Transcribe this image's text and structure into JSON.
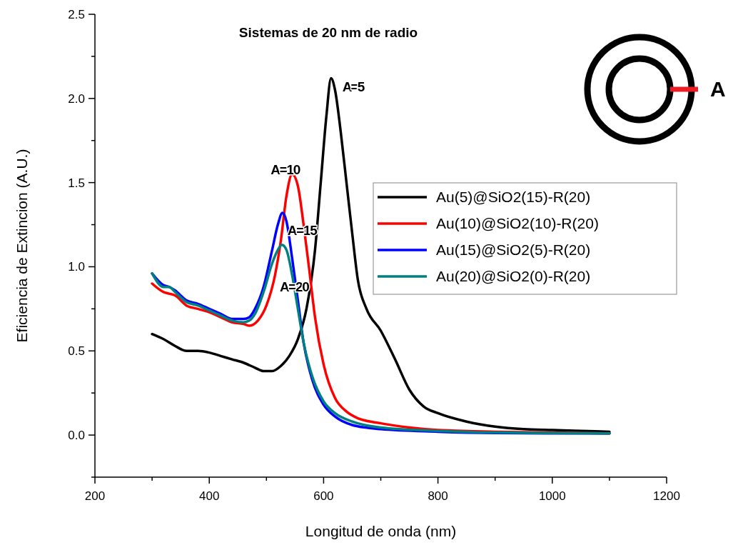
{
  "chart_data": {
    "type": "line",
    "title": "Sistemas de 20 nm de radio",
    "xlabel": "Longitud de onda (nm)",
    "ylabel": "Eficiencia de Extincion (A.U.)",
    "xlim": [
      200,
      1200
    ],
    "ylim": [
      -0.25,
      2.5
    ],
    "xticks": [
      200,
      {
        "value": 300,
        "label": null
      },
      400,
      {
        "value": 500,
        "label": null
      },
      600,
      {
        "value": 700,
        "label": null
      },
      800,
      {
        "value": 900,
        "label": null
      },
      1000,
      {
        "value": 1100,
        "label": null
      },
      1200
    ],
    "yticks": [
      {
        "value": -0.25,
        "label": null
      },
      {
        "value": 0,
        "label": "0.0"
      },
      {
        "value": 0.25,
        "label": null
      },
      0.5,
      {
        "value": 0.75,
        "label": null
      },
      {
        "value": 1,
        "label": "1.0"
      },
      {
        "value": 1.25,
        "label": null
      },
      1.5,
      {
        "value": 1.75,
        "label": null
      },
      {
        "value": 2,
        "label": "2.0"
      },
      {
        "value": 2.25,
        "label": null
      },
      2.5
    ],
    "grid": false,
    "legend": "right",
    "line_style": "solid",
    "marker": "none",
    "annotations": [
      {
        "text": "A=5",
        "x": 613,
        "y": 2.12
      },
      {
        "text": "A=10",
        "x": 545,
        "y": 1.55
      },
      {
        "text": "A=15",
        "x": 528,
        "y": 1.32
      },
      {
        "text": "A=20",
        "x": 527,
        "y": 1.13
      },
      "A"
    ],
    "series": [
      {
        "name": "Au(5)@SiO2(15)-R(20)",
        "color": "#000000",
        "x": [
          300,
          320,
          340,
          360,
          380,
          400,
          420,
          440,
          460,
          480,
          495,
          510,
          525,
          540,
          555,
          570,
          585,
          595,
          605,
          613,
          620,
          630,
          640,
          650,
          660,
          675,
          700,
          725,
          750,
          775,
          800,
          850,
          900,
          950,
          1000,
          1050,
          1100
        ],
        "values": [
          0.6,
          0.57,
          0.53,
          0.5,
          0.5,
          0.49,
          0.47,
          0.45,
          0.43,
          0.4,
          0.38,
          0.38,
          0.41,
          0.47,
          0.57,
          0.75,
          1.1,
          1.5,
          1.9,
          2.12,
          2.05,
          1.8,
          1.5,
          1.2,
          0.92,
          0.75,
          0.62,
          0.45,
          0.27,
          0.17,
          0.13,
          0.08,
          0.05,
          0.035,
          0.03,
          0.025,
          0.02
        ]
      },
      {
        "name": "Au(10)@SiO2(10)-R(20)",
        "color": "#ff0000",
        "x": [
          300,
          320,
          330,
          340,
          360,
          380,
          400,
          420,
          440,
          460,
          470,
          485,
          500,
          515,
          525,
          535,
          545,
          555,
          565,
          575,
          585,
          600,
          620,
          640,
          660,
          700,
          750,
          800,
          900,
          1000,
          1100
        ],
        "values": [
          0.9,
          0.85,
          0.84,
          0.83,
          0.77,
          0.75,
          0.73,
          0.7,
          0.67,
          0.66,
          0.65,
          0.68,
          0.77,
          0.95,
          1.15,
          1.42,
          1.55,
          1.48,
          1.25,
          0.98,
          0.7,
          0.42,
          0.22,
          0.14,
          0.1,
          0.07,
          0.045,
          0.03,
          0.02,
          0.015,
          0.01
        ]
      },
      {
        "name": "Au(15)@SiO2(5)-R(20)",
        "color": "#0000ff",
        "x": [
          300,
          320,
          330,
          340,
          360,
          380,
          400,
          420,
          440,
          460,
          470,
          480,
          495,
          510,
          520,
          528,
          535,
          545,
          555,
          565,
          580,
          600,
          620,
          650,
          700,
          800,
          900,
          1000,
          1100
        ],
        "values": [
          0.96,
          0.89,
          0.88,
          0.86,
          0.8,
          0.78,
          0.75,
          0.72,
          0.69,
          0.69,
          0.7,
          0.75,
          0.88,
          1.1,
          1.25,
          1.32,
          1.27,
          1.05,
          0.8,
          0.55,
          0.33,
          0.18,
          0.11,
          0.06,
          0.035,
          0.02,
          0.012,
          0.01,
          0.01
        ]
      },
      {
        "name": "Au(20)@SiO2(0)-R(20)",
        "color": "#008080",
        "x": [
          300,
          320,
          330,
          340,
          360,
          380,
          400,
          420,
          440,
          460,
          470,
          480,
          495,
          510,
          520,
          527,
          535,
          545,
          555,
          565,
          580,
          600,
          620,
          650,
          700,
          800,
          900,
          1000,
          1100
        ],
        "values": [
          0.96,
          0.88,
          0.88,
          0.85,
          0.79,
          0.77,
          0.74,
          0.71,
          0.68,
          0.67,
          0.68,
          0.72,
          0.85,
          1.02,
          1.1,
          1.13,
          1.1,
          0.95,
          0.75,
          0.55,
          0.35,
          0.2,
          0.13,
          0.08,
          0.045,
          0.025,
          0.015,
          0.012,
          0.01
        ]
      }
    ]
  }
}
